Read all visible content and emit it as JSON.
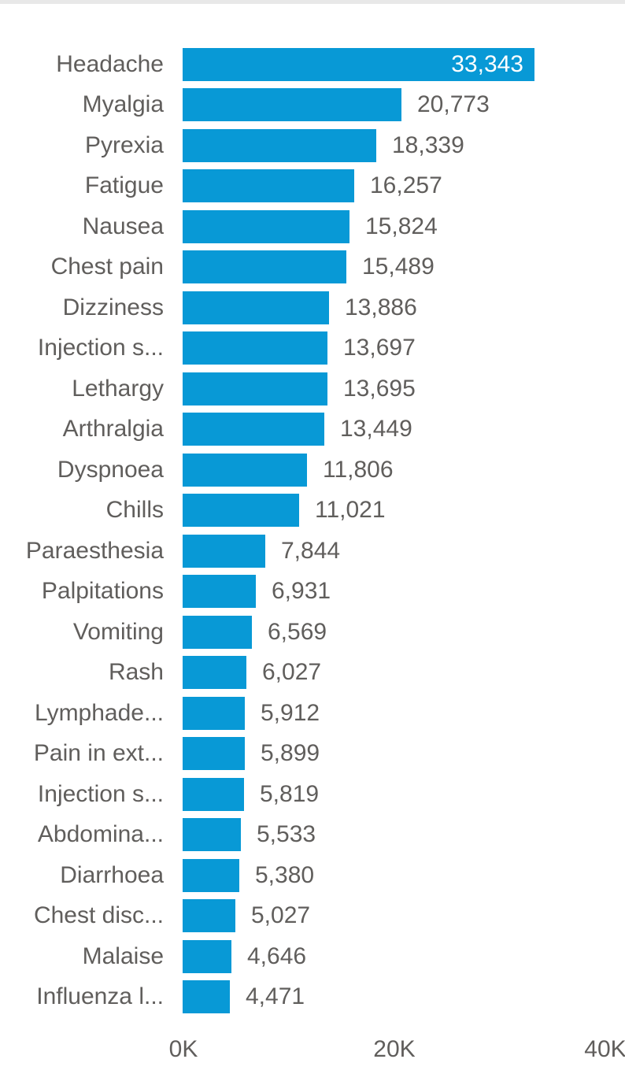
{
  "chart_data": {
    "type": "bar",
    "orientation": "horizontal",
    "title": "",
    "xlabel": "",
    "ylabel": "",
    "grid": false,
    "legend": false,
    "xlim": [
      0,
      40000
    ],
    "x_ticks": [
      {
        "label": "0K",
        "value": 0
      },
      {
        "label": "20K",
        "value": 20000
      },
      {
        "label": "40K",
        "value": 40000
      }
    ],
    "categories": [
      "Headache",
      "Myalgia",
      "Pyrexia",
      "Fatigue",
      "Nausea",
      "Chest pain",
      "Dizziness",
      "Injection s...",
      "Lethargy",
      "Arthralgia",
      "Dyspnoea",
      "Chills",
      "Paraesthesia",
      "Palpitations",
      "Vomiting",
      "Rash",
      "Lymphade...",
      "Pain in ext...",
      "Injection s...",
      "Abdomina...",
      "Diarrhoea",
      "Chest disc...",
      "Malaise",
      "Influenza l..."
    ],
    "values": [
      33343,
      20773,
      18339,
      16257,
      15824,
      15489,
      13886,
      13697,
      13695,
      13449,
      11806,
      11021,
      7844,
      6931,
      6569,
      6027,
      5912,
      5899,
      5819,
      5533,
      5380,
      5027,
      4646,
      4471
    ],
    "value_labels": [
      "33,343",
      "20,773",
      "18,339",
      "16,257",
      "15,824",
      "15,489",
      "13,886",
      "13,697",
      "13,695",
      "13,449",
      "11,806",
      "11,021",
      "7,844",
      "6,931",
      "6,569",
      "6,027",
      "5,912",
      "5,899",
      "5,819",
      "5,533",
      "5,380",
      "5,027",
      "4,646",
      "4,471"
    ],
    "inside_label_rows": [
      0
    ],
    "colors": {
      "bar": "#0899d6",
      "label": "#605e5c",
      "inside_value": "#ffffff",
      "top_strip": "#e8e8e8",
      "background": "#ffffff"
    }
  }
}
